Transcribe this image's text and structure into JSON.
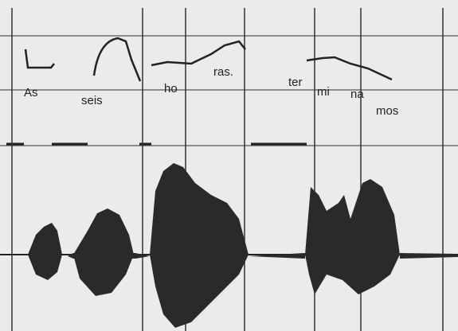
{
  "syllables": [
    "As",
    "seis",
    "ho",
    "ras.",
    "ter",
    "mi",
    "na",
    "mos"
  ]
}
